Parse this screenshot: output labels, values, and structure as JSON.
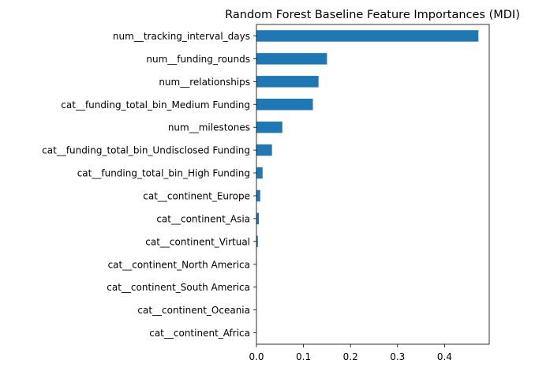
{
  "chart_data": {
    "type": "bar",
    "orientation": "horizontal",
    "title": "Random Forest Baseline Feature Importances (MDI)",
    "xlabel": "",
    "ylabel": "",
    "xlim": [
      0.0,
      0.495
    ],
    "xticks": [
      0.0,
      0.1,
      0.2,
      0.3,
      0.4
    ],
    "xtick_labels": [
      "0.0",
      "0.1",
      "0.2",
      "0.3",
      "0.4"
    ],
    "grid": false,
    "legend": "none",
    "bar_color": "#1f77b4",
    "categories": [
      "num__tracking_interval_days",
      "num__funding_rounds",
      "num__relationships",
      "cat__funding_total_bin_Medium Funding",
      "num__milestones",
      "cat__funding_total_bin_Undisclosed Funding",
      "cat__funding_total_bin_High Funding",
      "cat__continent_Europe",
      "cat__continent_Asia",
      "cat__continent_Virtual",
      "cat__continent_North America",
      "cat__continent_South America",
      "cat__continent_Oceania",
      "cat__continent_Africa"
    ],
    "values": [
      0.472,
      0.15,
      0.132,
      0.12,
      0.055,
      0.033,
      0.013,
      0.008,
      0.005,
      0.003,
      0.0005,
      0.0003,
      0.0001,
      0.0001
    ]
  }
}
